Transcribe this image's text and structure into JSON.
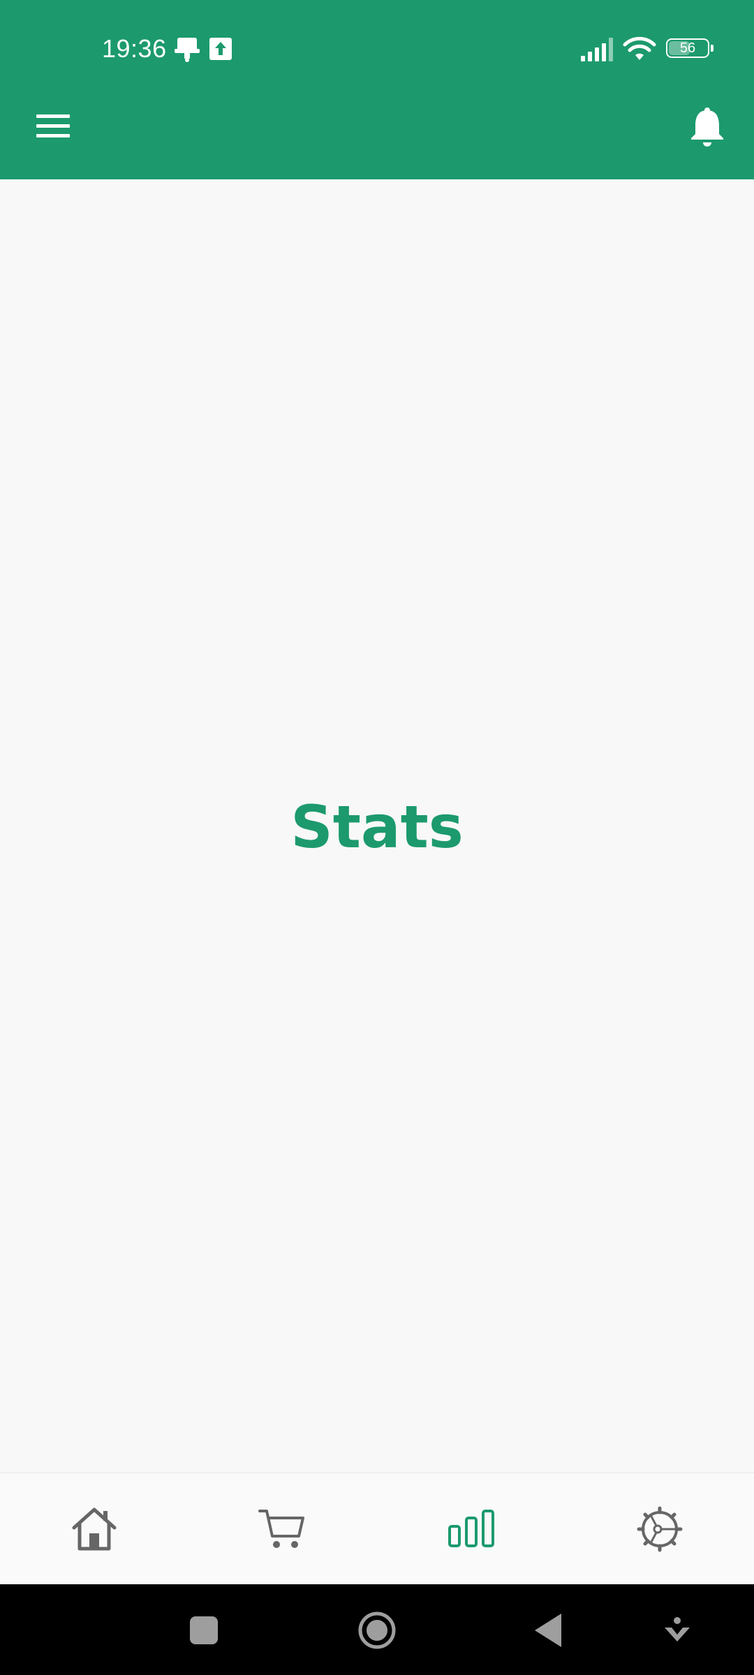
{
  "status_bar": {
    "time": "19:36",
    "battery_level": "56",
    "icons": [
      "notification-icon",
      "upload-icon",
      "signal-icon",
      "wifi-icon",
      "battery-icon"
    ]
  },
  "app_bar": {
    "menu_icon": "hamburger-menu-icon",
    "bell_icon": "bell-icon"
  },
  "main": {
    "title": "Stats"
  },
  "bottom_nav": {
    "items": [
      {
        "name": "home",
        "icon": "home-icon",
        "active": false
      },
      {
        "name": "cart",
        "icon": "cart-icon",
        "active": false
      },
      {
        "name": "stats",
        "icon": "bar-chart-icon",
        "active": true
      },
      {
        "name": "settings",
        "icon": "gear-icon",
        "active": false
      }
    ]
  },
  "colors": {
    "primary": "#1c9a6d",
    "inactive_icon": "#666666",
    "background": "#f8f8f8"
  }
}
